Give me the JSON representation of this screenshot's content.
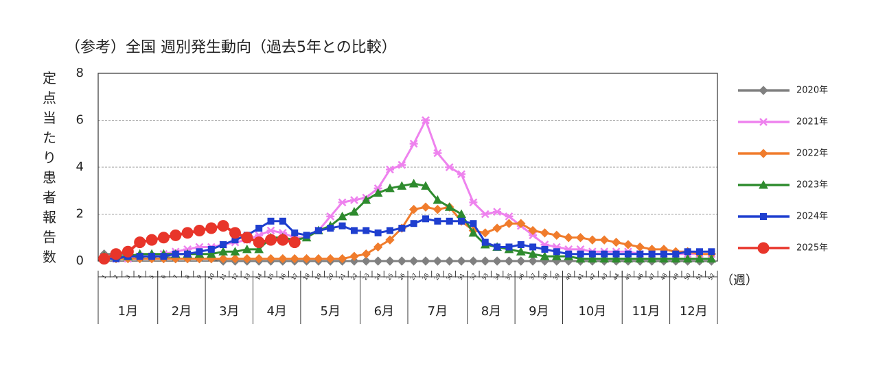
{
  "chart_data": {
    "type": "line",
    "title": "（参考）全国 週別発生動向（過去5年との比較）",
    "y_axis_label": "定点当たり患者報告数",
    "x_axis_label": "（週）",
    "categories": [
      "1",
      "2",
      "3",
      "4",
      "5",
      "6",
      "7",
      "8",
      "9",
      "10",
      "11",
      "12",
      "13",
      "14",
      "15",
      "16",
      "17",
      "18",
      "19",
      "20",
      "21",
      "22",
      "23",
      "24",
      "25",
      "26",
      "27",
      "28",
      "29",
      "30",
      "31",
      "32",
      "33",
      "34",
      "35",
      "36",
      "37",
      "38",
      "39",
      "40",
      "41",
      "42",
      "43",
      "44",
      "45",
      "46",
      "47",
      "48",
      "49",
      "50",
      "51",
      "52"
    ],
    "months": [
      "1月",
      "2月",
      "3月",
      "4月",
      "5月",
      "6月",
      "7月",
      "8月",
      "9月",
      "10月",
      "11月",
      "12月"
    ],
    "ylim": [
      0,
      8
    ],
    "yticks": [
      0,
      2,
      4,
      6,
      8
    ],
    "grid": true,
    "legend": "right",
    "series": [
      {
        "name": "2020年",
        "color": "#808080",
        "marker": "diamond",
        "values": [
          0.3,
          0.3,
          0.3,
          0.2,
          0.2,
          0.2,
          0.1,
          0.1,
          0.1,
          0.1,
          0,
          0,
          0,
          0,
          0,
          0,
          0,
          0,
          0,
          0,
          0,
          0,
          0,
          0,
          0,
          0,
          0,
          0,
          0,
          0,
          0,
          0,
          0,
          0,
          0,
          0,
          0,
          0,
          0,
          0,
          0,
          0,
          0,
          0,
          0,
          0,
          0,
          0,
          0,
          0,
          0,
          0
        ]
      },
      {
        "name": "2021年",
        "color": "#ee82ee",
        "marker": "star",
        "values": [
          0.1,
          0.1,
          0.1,
          0.2,
          0.2,
          0.3,
          0.4,
          0.5,
          0.6,
          0.6,
          0.7,
          0.8,
          0.9,
          1.1,
          1.3,
          1.2,
          1.0,
          1.0,
          1.3,
          1.9,
          2.5,
          2.6,
          2.7,
          3.1,
          3.9,
          4.1,
          5.0,
          6.0,
          4.6,
          4.0,
          3.7,
          2.5,
          2.0,
          2.1,
          1.9,
          1.5,
          1.1,
          0.7,
          0.6,
          0.5,
          0.5,
          0.4,
          0.4,
          0.4,
          0.4,
          0.3,
          0.3,
          0.3,
          0.3,
          0.3,
          0.3,
          0.3
        ]
      },
      {
        "name": "2022年",
        "color": "#f07c2c",
        "marker": "diamond",
        "values": [
          0.1,
          0.1,
          0.1,
          0.1,
          0.1,
          0.1,
          0.1,
          0.1,
          0.1,
          0.1,
          0.1,
          0.1,
          0.1,
          0.1,
          0.1,
          0.1,
          0.1,
          0.1,
          0.1,
          0.1,
          0.1,
          0.2,
          0.3,
          0.6,
          0.9,
          1.4,
          2.2,
          2.3,
          2.2,
          2.3,
          1.7,
          1.3,
          1.2,
          1.4,
          1.6,
          1.6,
          1.3,
          1.2,
          1.1,
          1.0,
          1.0,
          0.9,
          0.9,
          0.8,
          0.7,
          0.6,
          0.5,
          0.5,
          0.4,
          0.4,
          0.3,
          0.3
        ]
      },
      {
        "name": "2023年",
        "color": "#2e8b2e",
        "marker": "triangle",
        "values": [
          0.2,
          0.2,
          0.2,
          0.3,
          0.3,
          0.3,
          0.3,
          0.3,
          0.3,
          0.3,
          0.4,
          0.4,
          0.5,
          0.5,
          1.0,
          1.0,
          0.9,
          1.0,
          1.3,
          1.5,
          1.9,
          2.1,
          2.6,
          2.9,
          3.1,
          3.2,
          3.3,
          3.2,
          2.6,
          2.3,
          2.0,
          1.2,
          0.7,
          0.6,
          0.5,
          0.4,
          0.3,
          0.2,
          0.2,
          0.2,
          0.1,
          0.1,
          0.1,
          0.1,
          0.1,
          0.1,
          0.1,
          0.1,
          0.1,
          0.1,
          0.1,
          0.1
        ]
      },
      {
        "name": "2024年",
        "color": "#1f3fcf",
        "marker": "square",
        "values": [
          0.1,
          0.1,
          0.2,
          0.2,
          0.2,
          0.2,
          0.3,
          0.3,
          0.4,
          0.5,
          0.7,
          0.9,
          1.1,
          1.4,
          1.7,
          1.7,
          1.2,
          1.1,
          1.3,
          1.4,
          1.5,
          1.3,
          1.3,
          1.2,
          1.3,
          1.4,
          1.6,
          1.8,
          1.7,
          1.7,
          1.7,
          1.6,
          0.8,
          0.6,
          0.6,
          0.7,
          0.6,
          0.5,
          0.4,
          0.3,
          0.3,
          0.3,
          0.3,
          0.3,
          0.3,
          0.3,
          0.3,
          0.3,
          0.3,
          0.4,
          0.4,
          0.4
        ]
      },
      {
        "name": "2025年",
        "color": "#e8352a",
        "marker": "circle",
        "values": [
          0.1,
          0.3,
          0.4,
          0.8,
          0.9,
          1.0,
          1.1,
          1.2,
          1.3,
          1.4,
          1.5,
          1.2,
          1.0,
          0.8,
          0.9,
          0.9,
          0.8,
          null,
          null,
          null,
          null,
          null,
          null,
          null,
          null,
          null,
          null,
          null,
          null,
          null,
          null,
          null,
          null,
          null,
          null,
          null,
          null,
          null,
          null,
          null,
          null,
          null,
          null,
          null,
          null,
          null,
          null,
          null,
          null,
          null,
          null,
          null
        ]
      }
    ]
  }
}
